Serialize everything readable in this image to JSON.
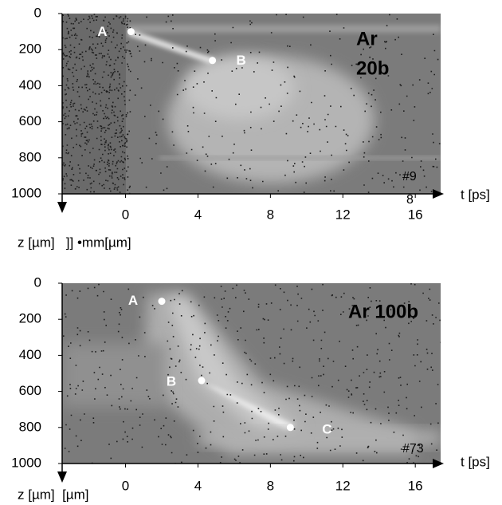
{
  "chart_data": [
    {
      "type": "image",
      "xlim": [
        -3.5,
        17.4
      ],
      "xticks": [
        0,
        4,
        8,
        12,
        16
      ],
      "ylim": [
        0,
        1000
      ],
      "y_inverted": true,
      "yticks": [
        0,
        200,
        400,
        600,
        800,
        1000
      ],
      "xlabel": "t [ps]",
      "ylabel": "z [µm]   ]] •mm[µm]",
      "label_lines": [
        "Ar",
        "20b"
      ],
      "annotations": [
        "#9",
        "8"
      ],
      "points": [
        {
          "label": "A",
          "x": 0.3,
          "y": 100
        },
        {
          "label": "B",
          "x": 4.8,
          "y": 260
        }
      ]
    },
    {
      "type": "image",
      "xlim": [
        -3.5,
        17.4
      ],
      "xticks": [
        0,
        4,
        8,
        12,
        16
      ],
      "ylim": [
        0,
        1000
      ],
      "y_inverted": true,
      "yticks": [
        0,
        200,
        400,
        600,
        800,
        1000
      ],
      "xlabel": "t [ps]",
      "ylabel": "z [µm]  [µm]",
      "label_lines": [
        "Ar 100b"
      ],
      "annotations": [
        "#73"
      ],
      "points": [
        {
          "label": "A",
          "x": 2.0,
          "y": 100
        },
        {
          "label": "B",
          "x": 4.2,
          "y": 540
        },
        {
          "label": "C",
          "x": 9.1,
          "y": 800
        }
      ]
    }
  ]
}
